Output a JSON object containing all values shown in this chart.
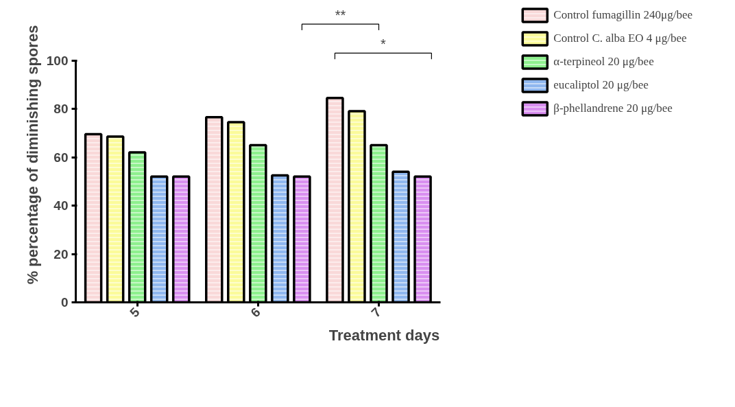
{
  "chart_data": {
    "type": "bar",
    "xlabel": "Treatment days",
    "ylabel": "% percentage of diminishing spores",
    "categories": [
      "5",
      "6",
      "7"
    ],
    "series": [
      {
        "name": "Control fumagillin 240μg/bee",
        "color": "#f9d9d9",
        "values": [
          69.5,
          76.5,
          84.5
        ]
      },
      {
        "name": "Control C. alba EO 4 μg/bee",
        "color": "#fbfb9a",
        "values": [
          68.5,
          74.5,
          79
        ]
      },
      {
        "name": "α-terpineol 20 μg/bee",
        "color": "#8ef08e",
        "values": [
          62,
          65,
          65
        ]
      },
      {
        "name": "eucaliptol 20 μg/bee",
        "color": "#8fb7ef",
        "values": [
          52,
          52.5,
          54
        ]
      },
      {
        "name": "β-phellandrene 20 μg/bee",
        "color": "#d98ff0",
        "values": [
          52,
          52,
          52
        ]
      }
    ],
    "annotations": [
      "**",
      "*"
    ],
    "ylim": [
      0,
      100
    ],
    "yticks": [
      0,
      20,
      40,
      60,
      80,
      100
    ],
    "grid": false,
    "legend": "top right"
  }
}
